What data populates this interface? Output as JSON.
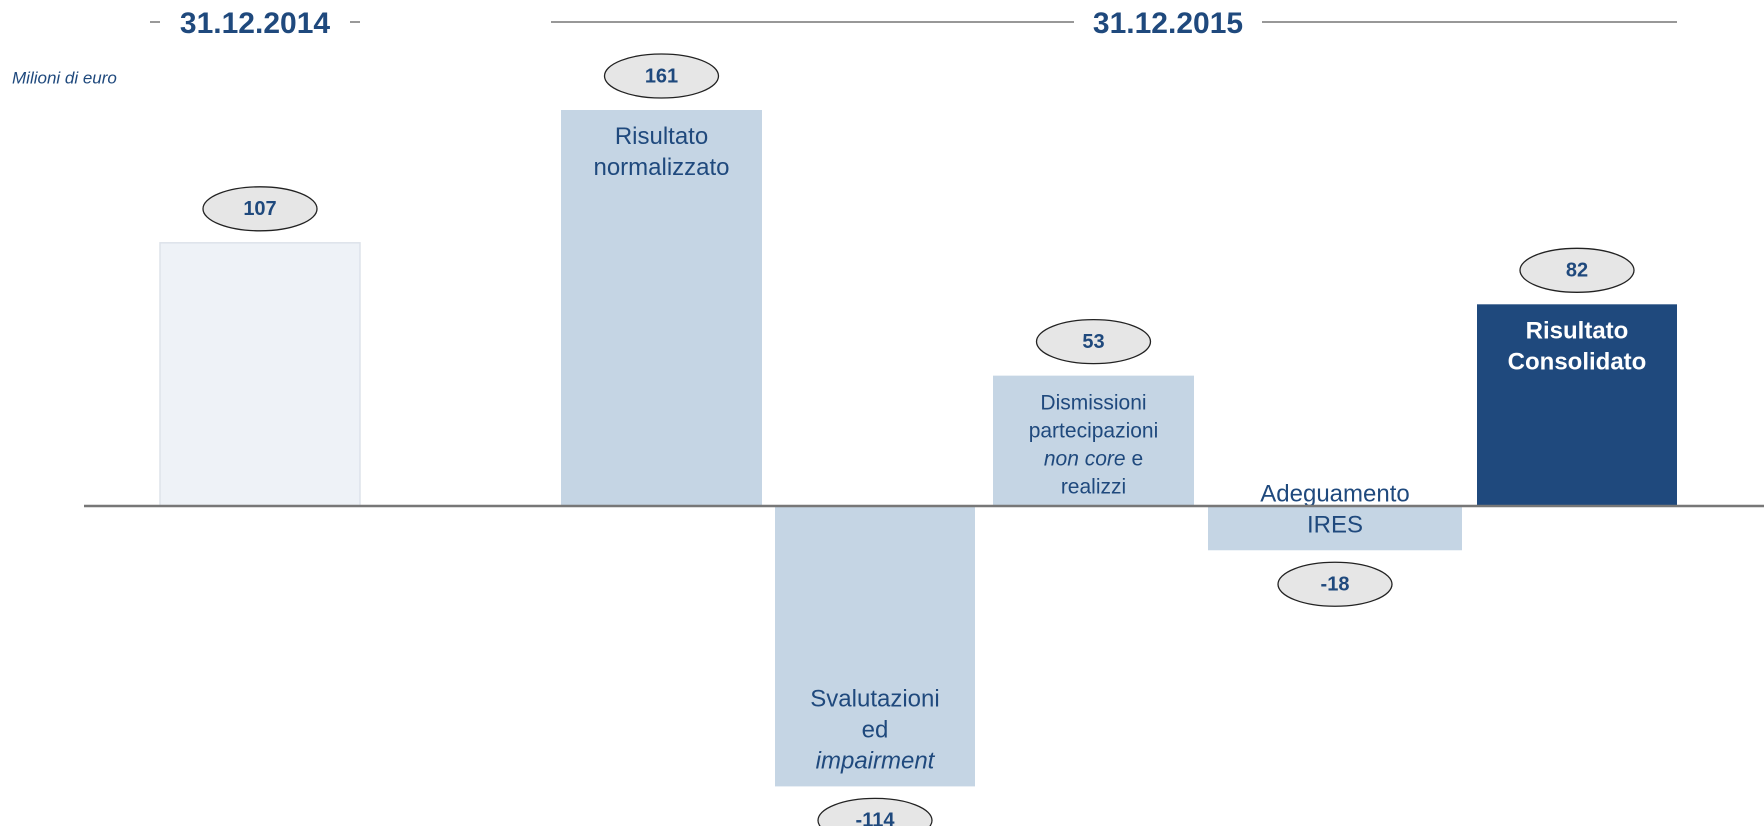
{
  "chart_data": {
    "type": "bar",
    "headers": [
      "31.12.2014",
      "31.12.2015"
    ],
    "unit_label": "Milioni di euro",
    "categories": [
      null,
      [
        [
          {
            "text": "Risultato",
            "italic": false
          }
        ],
        [
          {
            "text": "normalizzato",
            "italic": false
          }
        ]
      ],
      [
        [
          {
            "text": "Svalutazioni",
            "italic": false
          }
        ],
        [
          {
            "text": "ed",
            "italic": false
          }
        ],
        [
          {
            "text": "impairment",
            "italic": true
          }
        ]
      ],
      [
        [
          {
            "text": "Dismissioni",
            "italic": false
          }
        ],
        [
          {
            "text": "partecipazioni",
            "italic": false
          }
        ],
        [
          {
            "text": "non core",
            "italic": true
          },
          {
            "text": " e",
            "italic": false
          }
        ],
        [
          {
            "text": "realizzi",
            "italic": false
          }
        ]
      ],
      [
        [
          {
            "text": "Adeguamento",
            "italic": false
          }
        ],
        [
          {
            "text": "IRES",
            "italic": false
          }
        ]
      ],
      [
        [
          {
            "text": "Risultato",
            "italic": false
          }
        ],
        [
          {
            "text": "Consolidato",
            "italic": false
          }
        ]
      ]
    ],
    "values": [
      107,
      161,
      -114,
      53,
      -18,
      82
    ],
    "colors": [
      "#eef2f7",
      "#c5d5e4",
      "#c5d5e4",
      "#c5d5e4",
      "#c5d5e4",
      "#1f497d"
    ]
  }
}
